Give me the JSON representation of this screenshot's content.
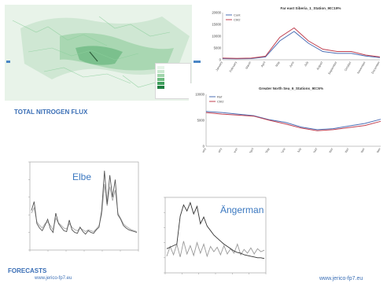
{
  "map": {
    "caption": "TOTAL NITROGEN FLUX",
    "legend_title": "",
    "legend_swatches": [
      "#e6f4e8",
      "#c9e8cf",
      "#9fd4aa",
      "#6dbb80",
      "#3f9e5c",
      "#1f7f41"
    ]
  },
  "forecasts_label": "FORECASTS",
  "footer": {
    "left_url": "www.jerico-fp7.eu",
    "right_url": "www.jerico-fp7.eu"
  },
  "panels": {
    "elbe": "Elbe",
    "angerman": "Ängerman"
  },
  "chart_data": [
    {
      "type": "line",
      "title": "Far east Siberia_1_Station_90=19%",
      "categories": [
        "January",
        "February",
        "March",
        "April",
        "May",
        "June",
        "July",
        "August",
        "September",
        "October",
        "November",
        "December"
      ],
      "ylim": [
        0,
        20000
      ],
      "yticks": [
        "0",
        "5000",
        "10000",
        "15000",
        "20000"
      ],
      "series": [
        {
          "name": "Cont",
          "color": "#4d6fb5",
          "values": [
            500,
            400,
            500,
            1200,
            8000,
            12000,
            7000,
            3500,
            2700,
            2700,
            1600,
            900
          ]
        },
        {
          "name": "Ctrl2",
          "color": "#c04050",
          "values": [
            700,
            600,
            700,
            1500,
            9500,
            13500,
            8000,
            4500,
            3500,
            3500,
            2000,
            1200
          ]
        }
      ],
      "legend": "top-left"
    },
    {
      "type": "line",
      "title": "Greater North Sea_6_Stations_90=6%",
      "categories": [
        "January",
        "February",
        "March",
        "April",
        "May",
        "June",
        "July",
        "August",
        "September",
        "October",
        "November",
        "December"
      ],
      "ylim": [
        0,
        10000
      ],
      "yticks": [
        "0",
        "5000",
        "10000"
      ],
      "series": [
        {
          "name": "Ref",
          "color": "#4d6fb5",
          "values": [
            6700,
            6500,
            6200,
            5900,
            5100,
            4600,
            3700,
            3200,
            3400,
            3900,
            4400,
            5200
          ]
        },
        {
          "name": "Ctrl2",
          "color": "#c04050",
          "values": [
            6500,
            6200,
            6000,
            5800,
            5000,
            4300,
            3500,
            3000,
            3200,
            3600,
            4000,
            4800
          ]
        }
      ],
      "legend": "top-left"
    },
    {
      "type": "line",
      "title": "",
      "x": [
        0,
        1,
        2,
        3,
        4,
        5,
        6,
        7,
        8,
        9,
        10,
        11,
        12,
        13,
        14,
        15,
        16,
        17,
        18,
        19,
        20,
        21,
        22,
        23,
        24,
        25,
        26,
        27,
        28,
        29,
        30,
        31,
        32,
        33,
        34,
        35,
        36,
        37,
        38,
        39
      ],
      "ylim": [
        0,
        10
      ],
      "series": [
        {
          "name": "",
          "color": "#555555",
          "values": [
            4.5,
            5.5,
            3,
            2.5,
            2.2,
            2.8,
            3.5,
            2.4,
            2,
            4.2,
            3,
            2.6,
            2.2,
            2.1,
            3.4,
            2.3,
            2,
            1.9,
            2.6,
            2.1,
            1.8,
            2.2,
            2,
            1.9,
            2.3,
            2.6,
            4.5,
            9,
            5.2,
            8.5,
            6,
            8,
            4,
            3.5,
            2.8,
            2.5,
            2.3,
            2.2,
            2.1,
            2
          ]
        },
        {
          "name": "",
          "color": "#aaaaaa",
          "values": [
            4.2,
            4.8,
            3.2,
            2.8,
            2.5,
            3,
            3.2,
            2.8,
            2.3,
            3.6,
            3.1,
            2.8,
            2.5,
            2.4,
            3,
            2.6,
            2.3,
            2.2,
            2.5,
            2.3,
            2.1,
            2.3,
            2.2,
            2.1,
            2.4,
            2.8,
            4,
            7.5,
            5,
            7.2,
            5.6,
            6.8,
            4.2,
            3.6,
            3,
            2.7,
            2.5,
            2.3,
            2.2,
            2.1
          ]
        }
      ]
    },
    {
      "type": "line",
      "title": "",
      "x": [
        0,
        1,
        2,
        3,
        4,
        5,
        6,
        7,
        8,
        9,
        10,
        11,
        12,
        13,
        14,
        15,
        16,
        17,
        18,
        19,
        20,
        21,
        22,
        23,
        24,
        25,
        26,
        27,
        28,
        29
      ],
      "ylim": [
        0,
        10
      ],
      "series": [
        {
          "name": "",
          "color": "#333333",
          "values": [
            3.2,
            3.4,
            3.6,
            3.8,
            7.5,
            9,
            8.2,
            9.3,
            7.8,
            8.8,
            6.5,
            7.4,
            6.2,
            5.6,
            5,
            4.6,
            4.2,
            3.8,
            3.5,
            3.2,
            2.9,
            2.7,
            2.6,
            2.4,
            2.3,
            2.2,
            2.1,
            2.0,
            2.0,
            1.9
          ]
        },
        {
          "name": "",
          "color": "#999999",
          "values": [
            2.2,
            3.5,
            2.4,
            3.8,
            2.1,
            4.2,
            2.5,
            3.6,
            2.3,
            4,
            2.6,
            3.8,
            2.2,
            3.5,
            2.8,
            3.4,
            2.4,
            3.6,
            2.5,
            3.2,
            2.6,
            3.8,
            2.4,
            3.1,
            2.6,
            3.3,
            2.5,
            3.2,
            2.8,
            3
          ]
        }
      ]
    }
  ]
}
